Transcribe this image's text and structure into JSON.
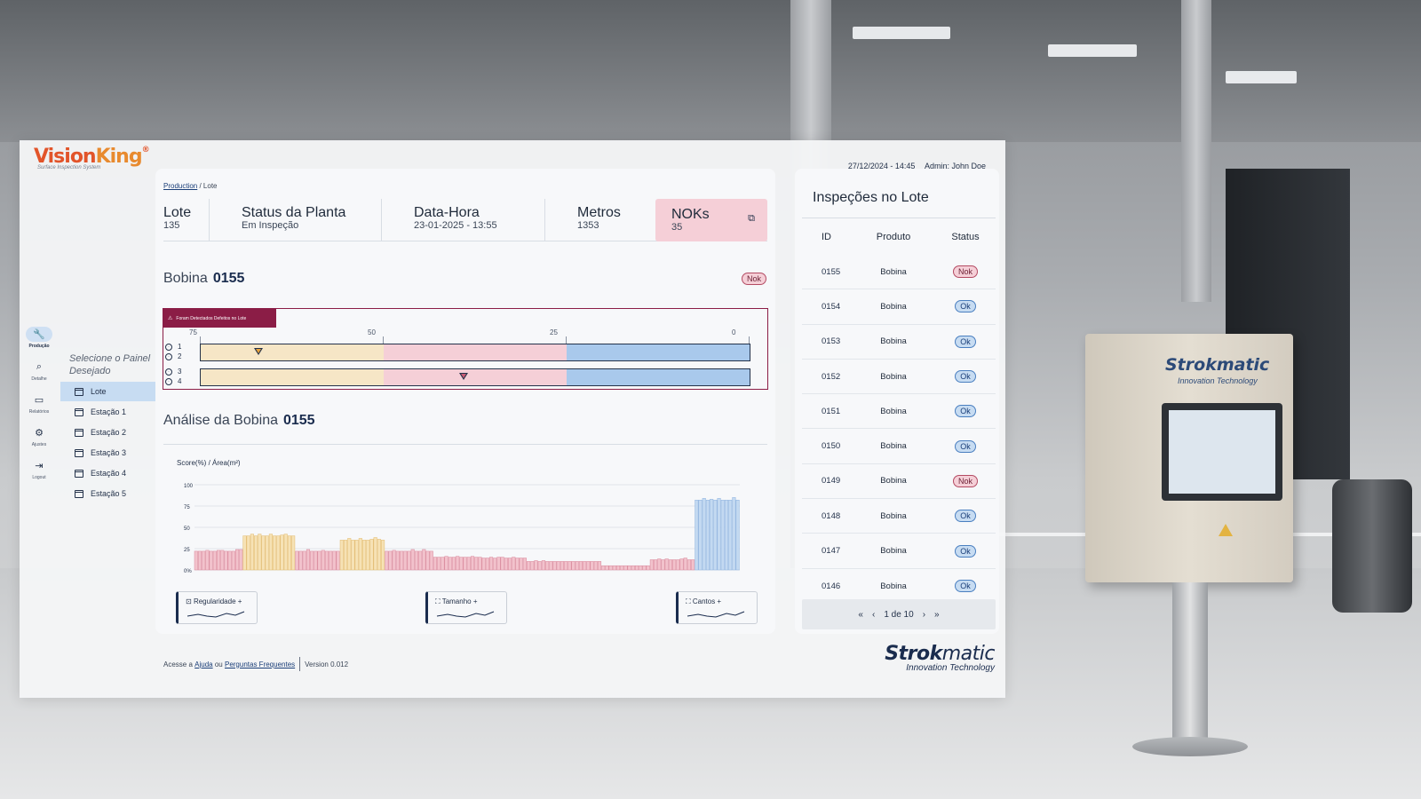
{
  "app": {
    "logo_main_a": "Vision",
    "logo_main_b": "King",
    "logo_reg": "®",
    "logo_tagline": "Surface Inspection System",
    "datetime": "27/12/2024 - 14:45",
    "admin": "Admin: John Doe"
  },
  "rail": [
    {
      "label": "Produção",
      "icon": "wrench-icon",
      "glyph": "🔧"
    },
    {
      "label": "Detalhe",
      "icon": "search-icon",
      "glyph": "⌕"
    },
    {
      "label": "Relatórios",
      "icon": "briefcase-icon",
      "glyph": "▭"
    },
    {
      "label": "Ajustes",
      "icon": "gear-icon",
      "glyph": "⚙"
    },
    {
      "label": "Logout",
      "icon": "logout-icon",
      "glyph": "⇥"
    }
  ],
  "panel": {
    "title": "Selecione o Painel Desejado",
    "items": [
      "Lote",
      "Estação 1",
      "Estação 2",
      "Estação 3",
      "Estação 4",
      "Estação 5"
    ]
  },
  "breadcrumb": {
    "link": "Production",
    "current": "/ Lote"
  },
  "kpis": {
    "lote_label": "Lote",
    "lote_value": "135",
    "status_label": "Status da Planta",
    "status_value": "Em Inspeção",
    "datahora_label": "Data-Hora",
    "datahora_value": "23-01-2025 - 13:55",
    "metros_label": "Metros",
    "metros_value": "1353",
    "noks_label": "NOKs",
    "noks_value": "35"
  },
  "bobina": {
    "title": "Bobina",
    "id": "0155",
    "status": "Nok",
    "warning": "Foram Detectados Defeitos no Lote",
    "ticks": [
      "75",
      "50",
      "25",
      "0"
    ],
    "lanes": [
      "1",
      "2",
      "3",
      "4"
    ]
  },
  "analise": {
    "title": "Análise da Bobina",
    "id": "0155"
  },
  "chart_data": {
    "type": "bar",
    "ylabel": "Score(%) / Área(m²)",
    "yticks": [
      "100",
      "75",
      "50",
      "25",
      "0%"
    ],
    "ylim": [
      0,
      100
    ],
    "values": [
      22,
      22,
      22,
      23,
      22,
      22,
      23,
      23,
      22,
      22,
      22,
      24,
      24,
      40,
      40,
      42,
      40,
      42,
      40,
      40,
      42,
      40,
      40,
      41,
      42,
      40,
      40,
      22,
      22,
      22,
      24,
      22,
      22,
      22,
      23,
      22,
      22,
      22,
      22,
      35,
      35,
      37,
      35,
      35,
      37,
      35,
      35,
      36,
      38,
      36,
      35,
      22,
      22,
      23,
      22,
      22,
      22,
      22,
      24,
      22,
      22,
      24,
      22,
      22,
      15,
      15,
      15,
      16,
      15,
      15,
      16,
      15,
      15,
      15,
      16,
      15,
      15,
      14,
      14,
      15,
      14,
      15,
      15,
      14,
      14,
      15,
      14,
      14,
      14,
      10,
      10,
      11,
      10,
      11,
      10,
      10,
      10,
      10,
      10,
      10,
      10,
      10,
      10,
      10,
      10,
      10,
      10,
      10,
      10,
      5,
      5,
      5,
      5,
      5,
      5,
      5,
      5,
      5,
      5,
      5,
      5,
      5,
      12,
      12,
      13,
      12,
      13,
      12,
      12,
      12,
      13,
      14,
      12,
      12,
      82,
      82,
      84,
      82,
      83,
      82,
      84,
      82,
      82,
      82,
      85,
      82
    ],
    "colors": [
      "pink",
      "yellow",
      "pink",
      "yellow",
      "pink",
      "pink",
      "pink",
      "pink",
      "pink",
      "pink",
      "blue"
    ]
  },
  "metrics": [
    {
      "label": "Regularidade +",
      "icon": "regularity-icon"
    },
    {
      "label": "Tamanho +",
      "icon": "size-icon"
    },
    {
      "label": "Cantos +",
      "icon": "corners-icon"
    }
  ],
  "footer": {
    "pre": "Acesse a",
    "ajuda": "Ajuda",
    "ou": "ou",
    "faq": "Perguntas Frequentes",
    "version": "Version 0.012"
  },
  "brand": {
    "a": "Strok",
    "b": "matic",
    "sub": "Innovation Technology"
  },
  "cabinet": {
    "a": "Strokmatic",
    "sub": "Innovation Technology"
  },
  "list": {
    "title": "Inspeções no Lote",
    "headers": {
      "id": "ID",
      "produto": "Produto",
      "status": "Status"
    },
    "rows": [
      {
        "id": "0155",
        "produto": "Bobina",
        "status": "Nok"
      },
      {
        "id": "0154",
        "produto": "Bobina",
        "status": "Ok"
      },
      {
        "id": "0153",
        "produto": "Bobina",
        "status": "Ok"
      },
      {
        "id": "0152",
        "produto": "Bobina",
        "status": "Ok"
      },
      {
        "id": "0151",
        "produto": "Bobina",
        "status": "Ok"
      },
      {
        "id": "0150",
        "produto": "Bobina",
        "status": "Ok"
      },
      {
        "id": "0149",
        "produto": "Bobina",
        "status": "Nok"
      },
      {
        "id": "0148",
        "produto": "Bobina",
        "status": "Ok"
      },
      {
        "id": "0147",
        "produto": "Bobina",
        "status": "Ok"
      },
      {
        "id": "0146",
        "produto": "Bobina",
        "status": "Ok"
      }
    ],
    "pager": {
      "first": "«",
      "prev": "‹",
      "label": "1 de 10",
      "next": "›",
      "last": "»"
    }
  }
}
